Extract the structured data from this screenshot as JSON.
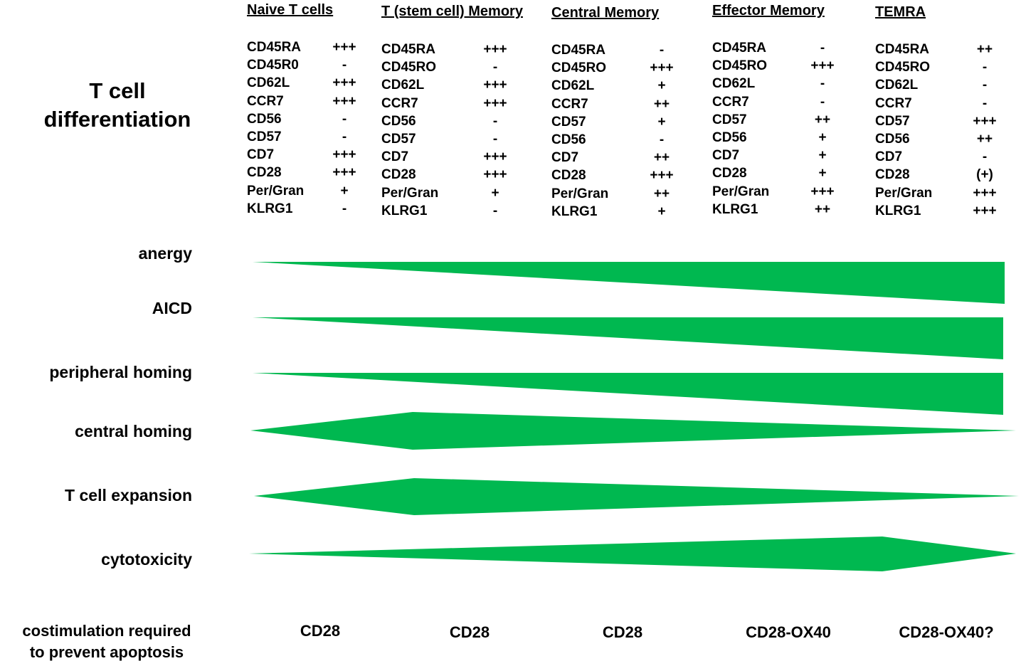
{
  "title": "T cell differentiation",
  "fill_color": "#00b850",
  "columns": [
    {
      "name": "Naive T cells",
      "markers": [
        {
          "label": "CD45RA",
          "level": "+++"
        },
        {
          "label": "CD45R0",
          "level": "-"
        },
        {
          "label": "CD62L",
          "level": "+++"
        },
        {
          "label": "CCR7",
          "level": "+++"
        },
        {
          "label": "CD56",
          "level": "-"
        },
        {
          "label": "CD57",
          "level": "-"
        },
        {
          "label": "CD7",
          "level": "+++"
        },
        {
          "label": "CD28",
          "level": "+++"
        },
        {
          "label": "Per/Gran",
          "level": "+"
        },
        {
          "label": "KLRG1",
          "level": "-"
        }
      ]
    },
    {
      "name": "T (stem cell) Memory",
      "markers": [
        {
          "label": "CD45RA",
          "level": "+++"
        },
        {
          "label": "CD45RO",
          "level": "-"
        },
        {
          "label": "CD62L",
          "level": "+++"
        },
        {
          "label": "CCR7",
          "level": "+++"
        },
        {
          "label": "CD56",
          "level": "-"
        },
        {
          "label": "CD57",
          "level": "-"
        },
        {
          "label": "CD7",
          "level": "+++"
        },
        {
          "label": "CD28",
          "level": "+++"
        },
        {
          "label": "Per/Gran",
          "level": "+"
        },
        {
          "label": "KLRG1",
          "level": "-"
        }
      ]
    },
    {
      "name": "Central Memory",
      "markers": [
        {
          "label": "CD45RA",
          "level": "-"
        },
        {
          "label": "CD45RO",
          "level": "+++"
        },
        {
          "label": "CD62L",
          "level": "+"
        },
        {
          "label": "CCR7",
          "level": "++"
        },
        {
          "label": "CD57",
          "level": "+"
        },
        {
          "label": "CD56",
          "level": "-"
        },
        {
          "label": "CD7",
          "level": "++"
        },
        {
          "label": "CD28",
          "level": "+++"
        },
        {
          "label": "Per/Gran",
          "level": "++"
        },
        {
          "label": "KLRG1",
          "level": "+"
        }
      ]
    },
    {
      "name": "Effector Memory",
      "markers": [
        {
          "label": "CD45RA",
          "level": "-"
        },
        {
          "label": "CD45RO",
          "level": "+++"
        },
        {
          "label": "CD62L",
          "level": "-"
        },
        {
          "label": "CCR7",
          "level": "-"
        },
        {
          "label": "CD57",
          "level": "++"
        },
        {
          "label": "CD56",
          "level": "+"
        },
        {
          "label": "CD7",
          "level": "+"
        },
        {
          "label": "CD28",
          "level": "+"
        },
        {
          "label": "Per/Gran",
          "level": "+++"
        },
        {
          "label": "KLRG1",
          "level": "++"
        }
      ]
    },
    {
      "name": "TEMRA",
      "markers": [
        {
          "label": "CD45RA",
          "level": "++"
        },
        {
          "label": "CD45RO",
          "level": "-"
        },
        {
          "label": "CD62L",
          "level": "-"
        },
        {
          "label": "CCR7",
          "level": "-"
        },
        {
          "label": "CD57",
          "level": "+++"
        },
        {
          "label": "CD56",
          "level": "++"
        },
        {
          "label": "CD7",
          "level": "-"
        },
        {
          "label": "CD28",
          "level": "(+)"
        },
        {
          "label": "Per/Gran",
          "level": "+++"
        },
        {
          "label": "KLRG1",
          "level": "+++"
        }
      ]
    }
  ],
  "rows": [
    {
      "label": "anergy"
    },
    {
      "label": "AICD"
    },
    {
      "label": "peripheral homing"
    },
    {
      "label": "central homing"
    },
    {
      "label": "T cell expansion"
    },
    {
      "label": "cytotoxicity"
    }
  ],
  "costimulation": {
    "label_line1": "costimulation required",
    "label_line2": "to prevent apoptosis",
    "values": [
      "CD28",
      "CD28",
      "CD28",
      "CD28-OX40",
      "CD28-OX40?"
    ]
  }
}
